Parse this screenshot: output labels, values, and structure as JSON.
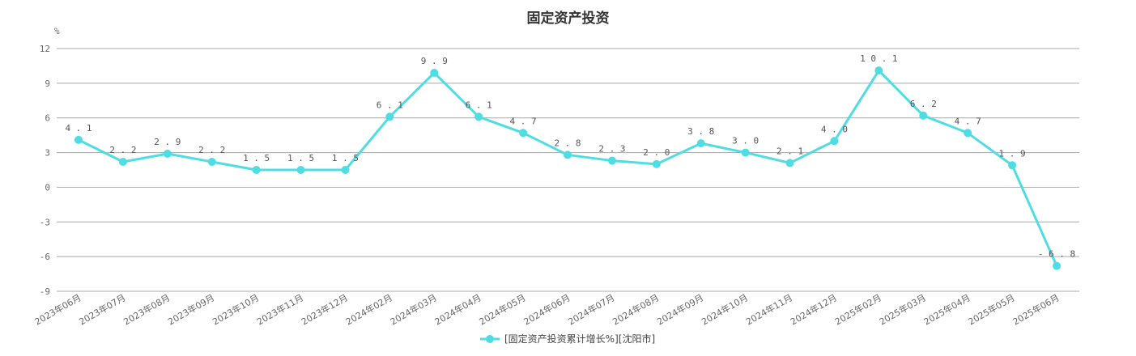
{
  "chart_data": {
    "type": "line",
    "title": "固定资产投资",
    "ylabel": "%",
    "ylim": [
      -9,
      12
    ],
    "yticks": [
      -9,
      -6,
      -3,
      0,
      3,
      6,
      9,
      12
    ],
    "grid": true,
    "legend_position": "bottom-center",
    "categories": [
      "2023年06月",
      "2023年07月",
      "2023年08月",
      "2023年09月",
      "2023年10月",
      "2023年11月",
      "2023年12月",
      "2024年02月",
      "2024年03月",
      "2024年04月",
      "2024年05月",
      "2024年06月",
      "2024年07月",
      "2024年08月",
      "2024年09月",
      "2024年10月",
      "2024年11月",
      "2024年12月",
      "2025年02月",
      "2025年03月",
      "2025年04月",
      "2025年05月",
      "2025年06月"
    ],
    "series": [
      {
        "name": "[固定资产投资累计增长%][沈阳市]",
        "color": "#4fdde4",
        "values": [
          4.1,
          2.2,
          2.9,
          2.2,
          1.5,
          1.5,
          1.5,
          6.1,
          9.9,
          6.1,
          4.7,
          2.8,
          2.3,
          2.0,
          3.8,
          3.0,
          2.1,
          4.0,
          10.1,
          6.2,
          4.7,
          1.9,
          -6.8
        ]
      }
    ]
  }
}
